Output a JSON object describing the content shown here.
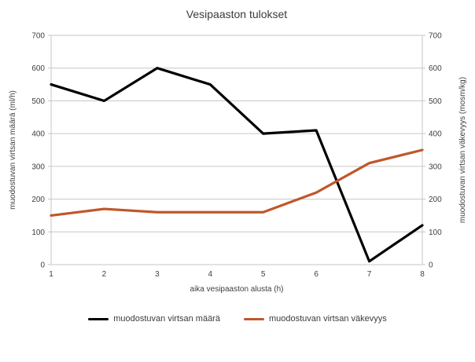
{
  "chart_data": {
    "type": "line",
    "title": "Vesipaaston tulokset",
    "xlabel": "aika vesipaaston alusta (h)",
    "ylabel_left": "muodostuvan virtsan määrä (ml/h)",
    "ylabel_right": "muodostuvan virtsan väkevyys (mosm/kg)",
    "categories": [
      "1",
      "2",
      "3",
      "4",
      "5",
      "6",
      "7",
      "8"
    ],
    "series": [
      {
        "name": "muodostuvan virtsan määrä",
        "axis": "left",
        "color": "#000000",
        "values": [
          550,
          500,
          600,
          550,
          400,
          410,
          10,
          120
        ]
      },
      {
        "name": "muodostuvan virtsan väkevyys",
        "axis": "right",
        "color": "#c0572b",
        "values": [
          150,
          170,
          160,
          160,
          160,
          220,
          310,
          350
        ]
      }
    ],
    "ylim": [
      0,
      700
    ],
    "ytick_step": 100,
    "yticks": [
      0,
      100,
      200,
      300,
      400,
      500,
      600,
      700
    ],
    "grid": true,
    "legend_position": "bottom"
  },
  "colors": {
    "gridline": "#c6c6c6",
    "axis_text": "#3f3f3f",
    "background": "#ffffff"
  }
}
